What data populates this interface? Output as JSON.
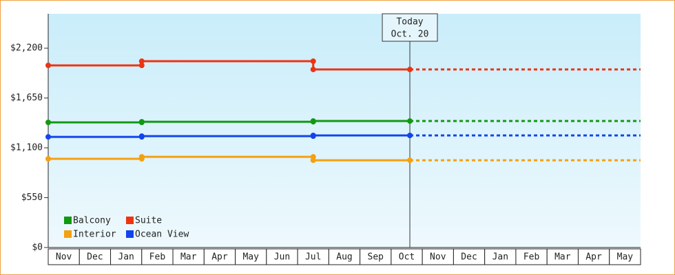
{
  "chart_data": {
    "type": "step-line",
    "x": [
      0,
      3,
      3,
      8.5,
      8.5,
      11.6
    ],
    "forecast_x": [
      11.6,
      19
    ],
    "series": [
      {
        "name": "Balcony",
        "color": "#119911",
        "values": [
          1381,
          1381,
          1388,
          1388,
          1396,
          1396
        ],
        "forecast_values": [
          1396,
          1396
        ]
      },
      {
        "name": "Suite",
        "color": "#ee3311",
        "values": [
          2010,
          2010,
          2056,
          2056,
          1965,
          1965
        ],
        "forecast_values": [
          1965,
          1965
        ]
      },
      {
        "name": "Interior",
        "color": "#f5a010",
        "values": [
          979,
          979,
          1001,
          1001,
          963,
          963
        ],
        "forecast_values": [
          963,
          963
        ]
      },
      {
        "name": "Ocean View",
        "color": "#1144ee",
        "values": [
          1221,
          1221,
          1229,
          1229,
          1237,
          1237
        ],
        "forecast_values": [
          1237,
          1237
        ]
      }
    ],
    "xlim": [
      0,
      19
    ],
    "xticks": [
      {
        "value": 0.5,
        "label": "Nov"
      },
      {
        "value": 1.5,
        "label": "Dec"
      },
      {
        "value": 2.5,
        "label": "Jan"
      },
      {
        "value": 3.5,
        "label": "Feb"
      },
      {
        "value": 4.5,
        "label": "Mar"
      },
      {
        "value": 5.5,
        "label": "Apr"
      },
      {
        "value": 6.5,
        "label": "May"
      },
      {
        "value": 7.5,
        "label": "Jun"
      },
      {
        "value": 8.5,
        "label": "Jul"
      },
      {
        "value": 9.5,
        "label": "Aug"
      },
      {
        "value": 10.5,
        "label": "Sep"
      },
      {
        "value": 11.5,
        "label": "Oct"
      },
      {
        "value": 12.5,
        "label": "Nov"
      },
      {
        "value": 13.5,
        "label": "Dec"
      },
      {
        "value": 14.5,
        "label": "Jan"
      },
      {
        "value": 15.5,
        "label": "Feb"
      },
      {
        "value": 16.5,
        "label": "Mar"
      },
      {
        "value": 17.5,
        "label": "Apr"
      },
      {
        "value": 18.5,
        "label": "May"
      }
    ],
    "ylim": [
      0,
      2580
    ],
    "yticks": [
      {
        "value": 0,
        "label": "$0"
      },
      {
        "value": 550,
        "label": "$550"
      },
      {
        "value": 1100,
        "label": "$1,100"
      },
      {
        "value": 1650,
        "label": "$1,650"
      },
      {
        "value": 2200,
        "label": "$2,200"
      }
    ],
    "today": {
      "x": 11.6,
      "label": [
        "Today",
        "Oct. 20"
      ]
    }
  }
}
